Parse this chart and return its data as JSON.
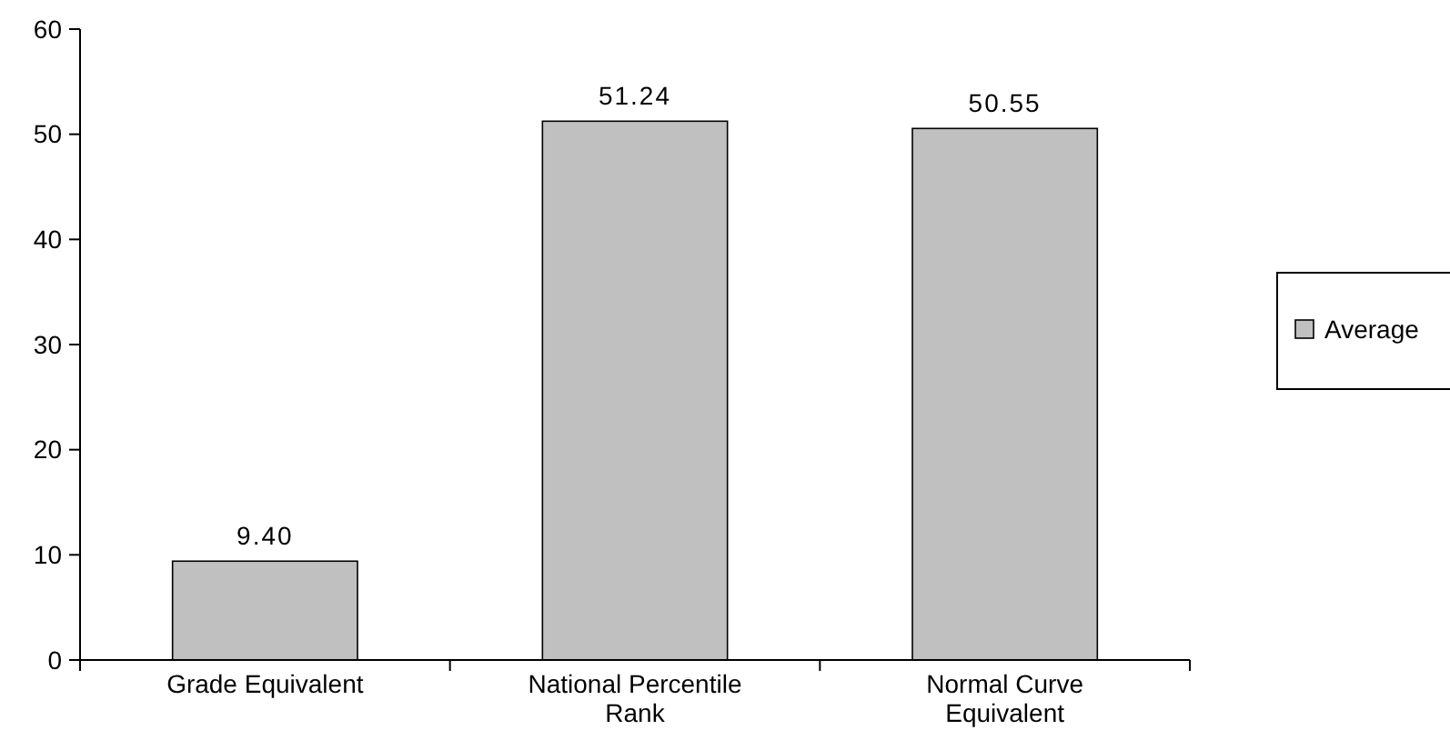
{
  "chart_data": {
    "type": "bar",
    "categories": [
      "Grade Equivalent",
      "National Percentile Rank",
      "Normal Curve Equivalent"
    ],
    "series": [
      {
        "name": "Average",
        "color": "#c0c0c0",
        "values": [
          9.4,
          51.24,
          50.55
        ],
        "value_labels": [
          "9.40",
          "51.24",
          "50.55"
        ]
      }
    ],
    "ylim": [
      0,
      60
    ],
    "yticks": [
      0,
      10,
      20,
      30,
      40,
      50,
      60
    ],
    "grid": false,
    "legend": "right"
  }
}
